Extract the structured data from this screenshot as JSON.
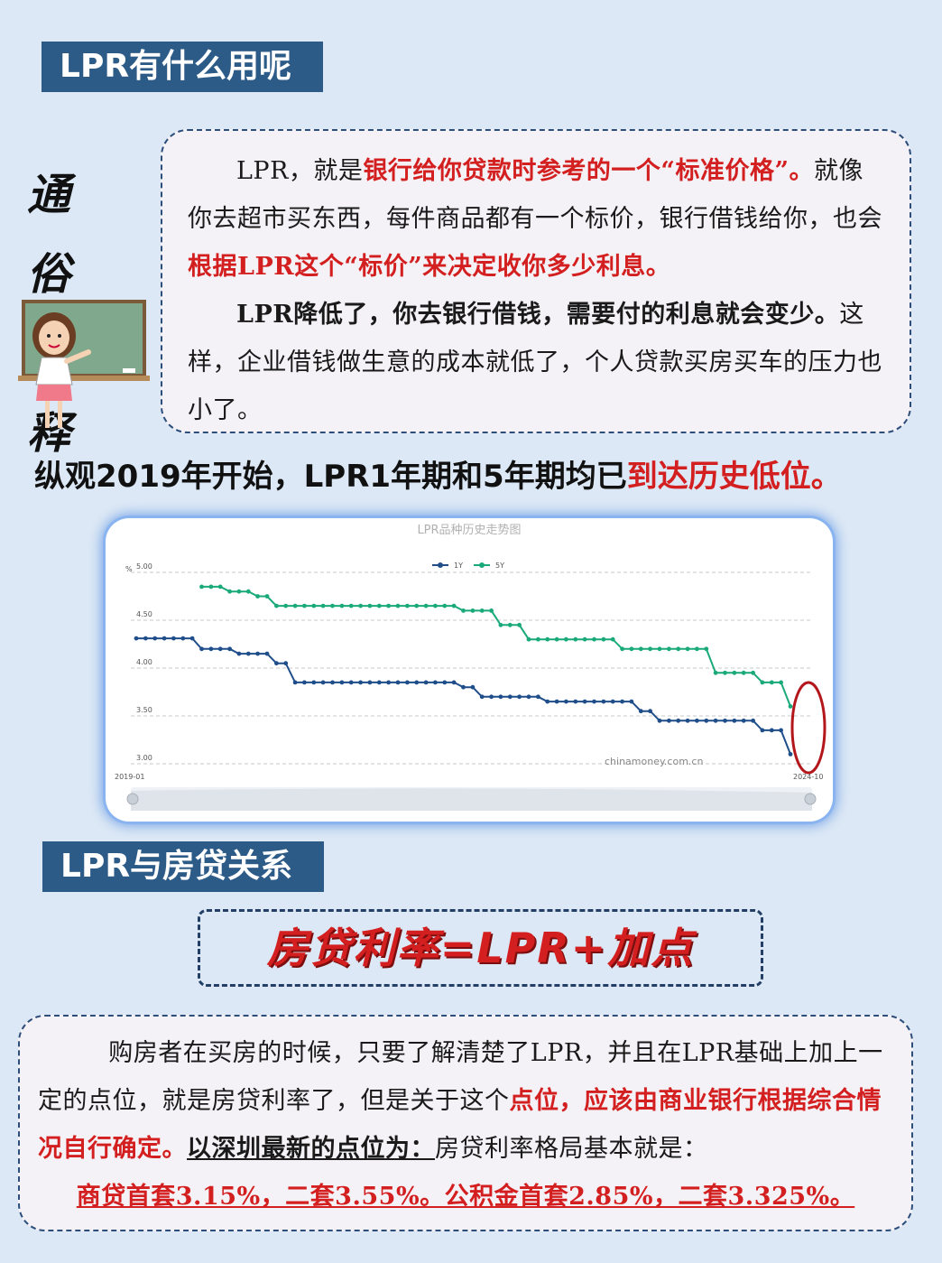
{
  "section1": {
    "title": "LPR有什么用呢"
  },
  "side_title": {
    "line1": "通 俗",
    "line2": "解 释"
  },
  "explain": {
    "p1_a": "LPR，就是",
    "p1_b": "银行给你贷款时参考的一个“标准价格”。",
    "p1_c": "就像你去超市买东西，每件商品都有一个标价，银行借钱给你，也会",
    "p1_d": "根据LPR这个“标价”来决定收你多少利息。",
    "p2_a": "LPR降低了，你去银行借钱，需要付的利息就会变少。",
    "p2_b": "这样，企业借钱做生意的成本就低了，个人贷款买房买车的压力也小了。"
  },
  "headline": {
    "part1": "纵观2019年开始，LPR1年期和5年期均已",
    "part2": "到达历史低位。"
  },
  "chart_data": {
    "type": "line",
    "title": "LPR品种历史走势图",
    "unit": "%",
    "watermark": "chinamoney.com.cn",
    "x_start_label": "2019-01",
    "x_end_label": "2024-10",
    "y_ticks": [
      "5.00",
      "4.50",
      "4.00",
      "3.50",
      "3.00"
    ],
    "ylim": [
      3.0,
      5.0
    ],
    "legend_position": "top-center",
    "series": [
      {
        "name": "1Y",
        "color": "#1f4e8a",
        "values": [
          4.31,
          4.31,
          4.31,
          4.31,
          4.31,
          4.31,
          4.31,
          4.2,
          4.2,
          4.2,
          4.2,
          4.15,
          4.15,
          4.15,
          4.15,
          4.05,
          4.05,
          3.85,
          3.85,
          3.85,
          3.85,
          3.85,
          3.85,
          3.85,
          3.85,
          3.85,
          3.85,
          3.85,
          3.85,
          3.85,
          3.85,
          3.85,
          3.85,
          3.85,
          3.85,
          3.8,
          3.8,
          3.7,
          3.7,
          3.7,
          3.7,
          3.7,
          3.7,
          3.7,
          3.65,
          3.65,
          3.65,
          3.65,
          3.65,
          3.65,
          3.65,
          3.65,
          3.65,
          3.65,
          3.55,
          3.55,
          3.45,
          3.45,
          3.45,
          3.45,
          3.45,
          3.45,
          3.45,
          3.45,
          3.45,
          3.45,
          3.45,
          3.35,
          3.35,
          3.35,
          3.1
        ]
      },
      {
        "name": "5Y",
        "color": "#1aa97a",
        "values": [
          null,
          null,
          null,
          null,
          null,
          null,
          null,
          4.85,
          4.85,
          4.85,
          4.8,
          4.8,
          4.8,
          4.75,
          4.75,
          4.65,
          4.65,
          4.65,
          4.65,
          4.65,
          4.65,
          4.65,
          4.65,
          4.65,
          4.65,
          4.65,
          4.65,
          4.65,
          4.65,
          4.65,
          4.65,
          4.65,
          4.65,
          4.65,
          4.65,
          4.6,
          4.6,
          4.6,
          4.6,
          4.45,
          4.45,
          4.45,
          4.3,
          4.3,
          4.3,
          4.3,
          4.3,
          4.3,
          4.3,
          4.3,
          4.3,
          4.3,
          4.2,
          4.2,
          4.2,
          4.2,
          4.2,
          4.2,
          4.2,
          4.2,
          4.2,
          4.2,
          3.95,
          3.95,
          3.95,
          3.95,
          3.95,
          3.85,
          3.85,
          3.85,
          3.6
        ]
      }
    ]
  },
  "section2": {
    "title": "LPR与房贷关系"
  },
  "formula": {
    "text": "房贷利率=LPR+加点"
  },
  "mortgage": {
    "a": "购房者在买房的时候，只要了解清楚了LPR，并且在LPR基础上加上一定的点位，就是房贷利率了，但是关于这个",
    "b": "点位，应该由商业银行根据综合情况自行确定。",
    "c": "以深圳最新的点位为：",
    "d": "房贷利率格局基本就是：",
    "rates": "商贷首套3.15%，二套3.55%。公积金首套2.85%，二套3.325%。"
  },
  "colors": {
    "accent_red": "#d31f1f",
    "tag_blue": "#2d5b88",
    "background": "#dce8f5"
  }
}
